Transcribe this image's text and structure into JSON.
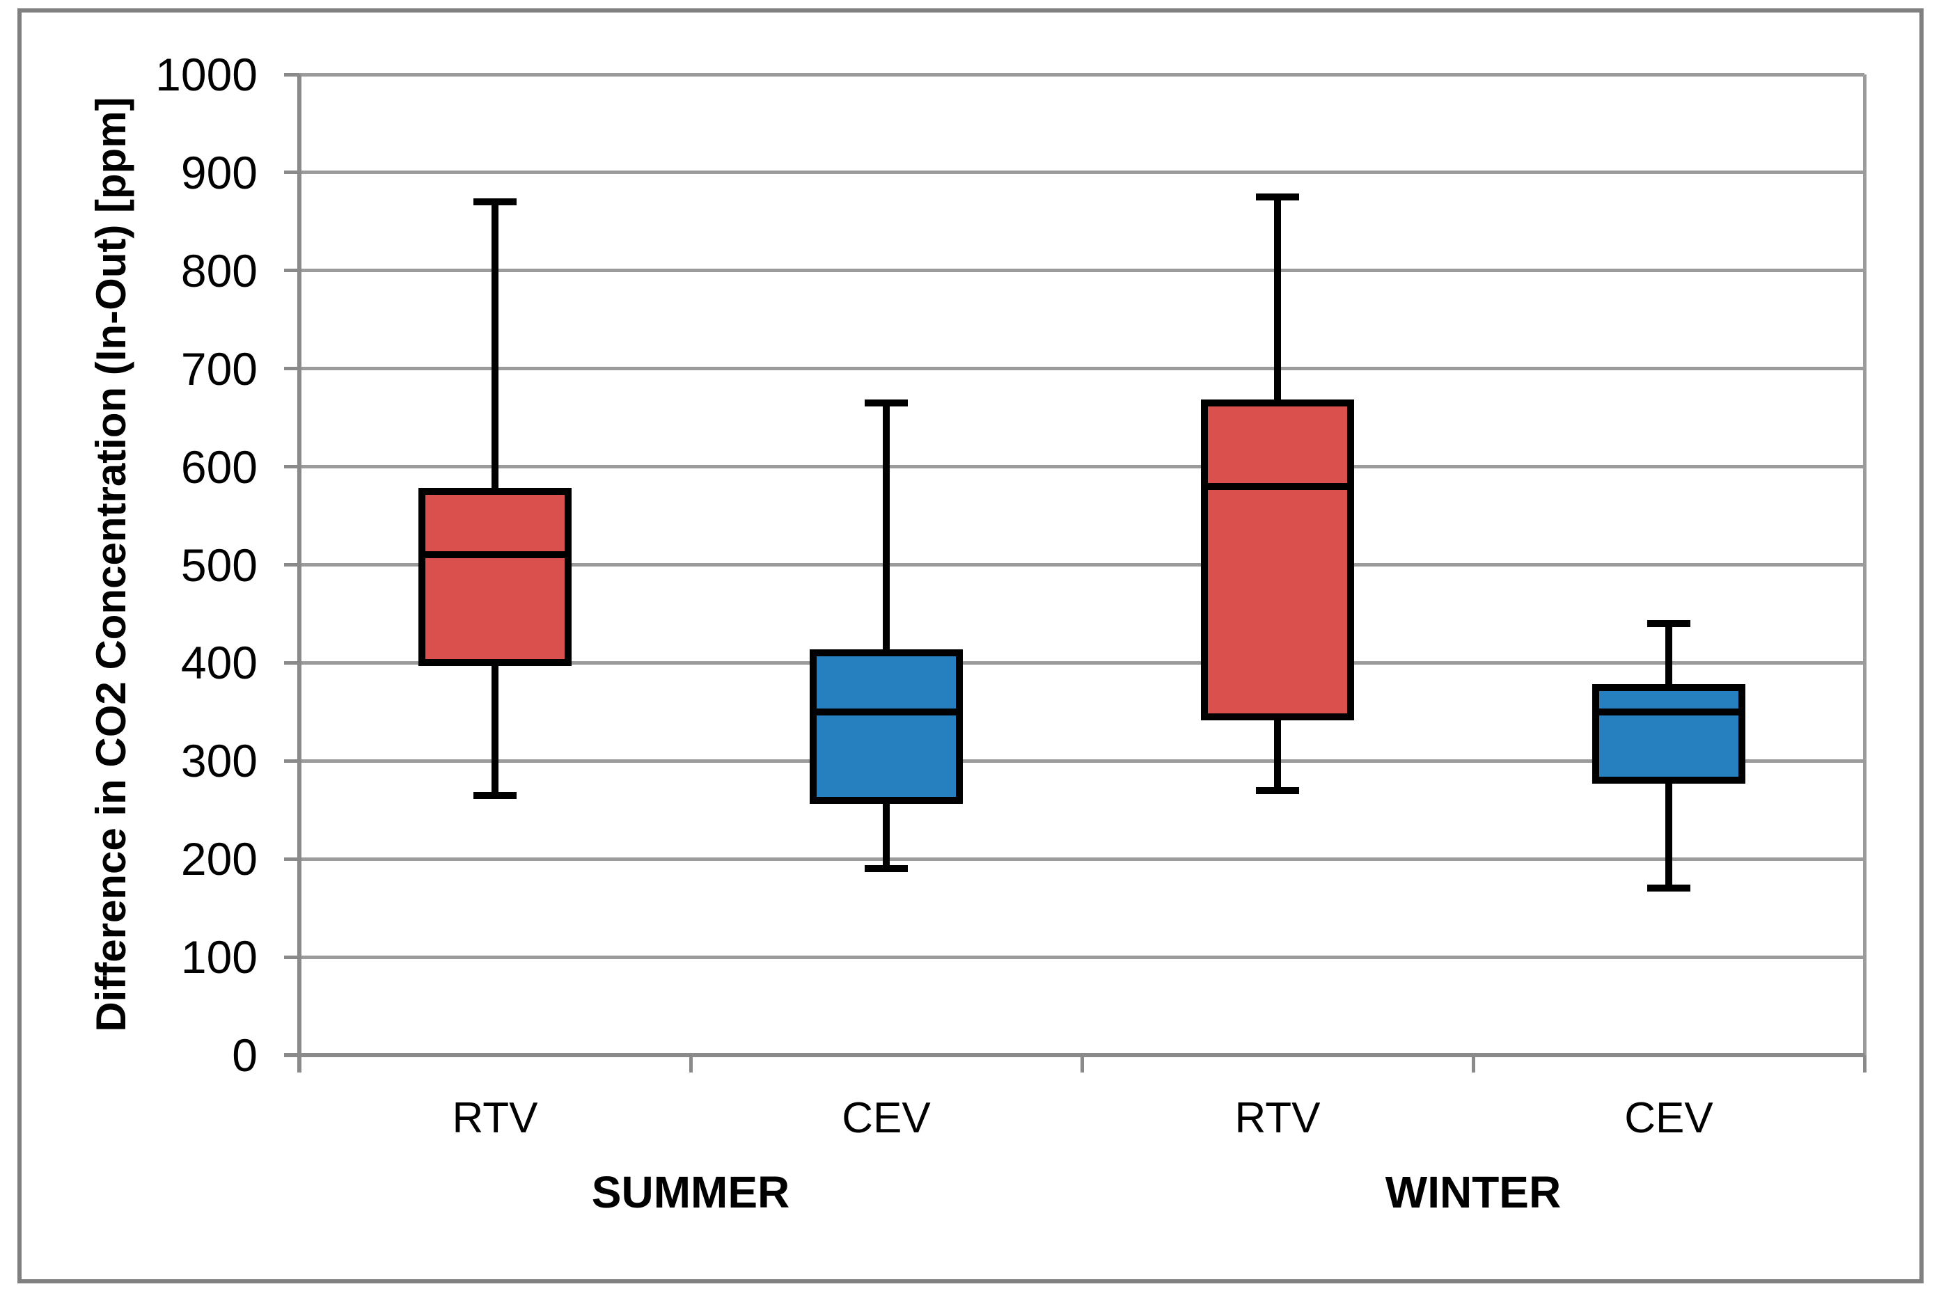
{
  "chart_data": {
    "type": "boxplot",
    "title": "",
    "ylabel": "Difference in CO2 Concentration (In-Out) [ppm]",
    "xlabel": "",
    "ylim": [
      0,
      1000
    ],
    "yticks": [
      0,
      100,
      200,
      300,
      400,
      500,
      600,
      700,
      800,
      900,
      1000
    ],
    "grid": true,
    "legend": "none",
    "groups": [
      {
        "label": "SUMMER",
        "categories": [
          {
            "label": "RTV",
            "color": "#D9504D",
            "min": 265,
            "q1": 400,
            "median": 510,
            "q3": 575,
            "max": 870
          },
          {
            "label": "CEV",
            "color": "#2680BF",
            "min": 190,
            "q1": 260,
            "median": 350,
            "q3": 410,
            "max": 665
          }
        ]
      },
      {
        "label": "WINTER",
        "categories": [
          {
            "label": "RTV",
            "color": "#D9504D",
            "min": 270,
            "q1": 345,
            "median": 580,
            "q3": 665,
            "max": 875
          },
          {
            "label": "CEV",
            "color": "#2680BF",
            "min": 170,
            "q1": 280,
            "median": 350,
            "q3": 375,
            "max": 440
          }
        ]
      }
    ],
    "colors": {
      "rtv_fill": "#D9504D",
      "cev_fill": "#2680BF",
      "box_outline": "#000000",
      "gridline": "#9B9B9B",
      "axis": "#8A8A8A",
      "chart_border": "#808080"
    }
  }
}
